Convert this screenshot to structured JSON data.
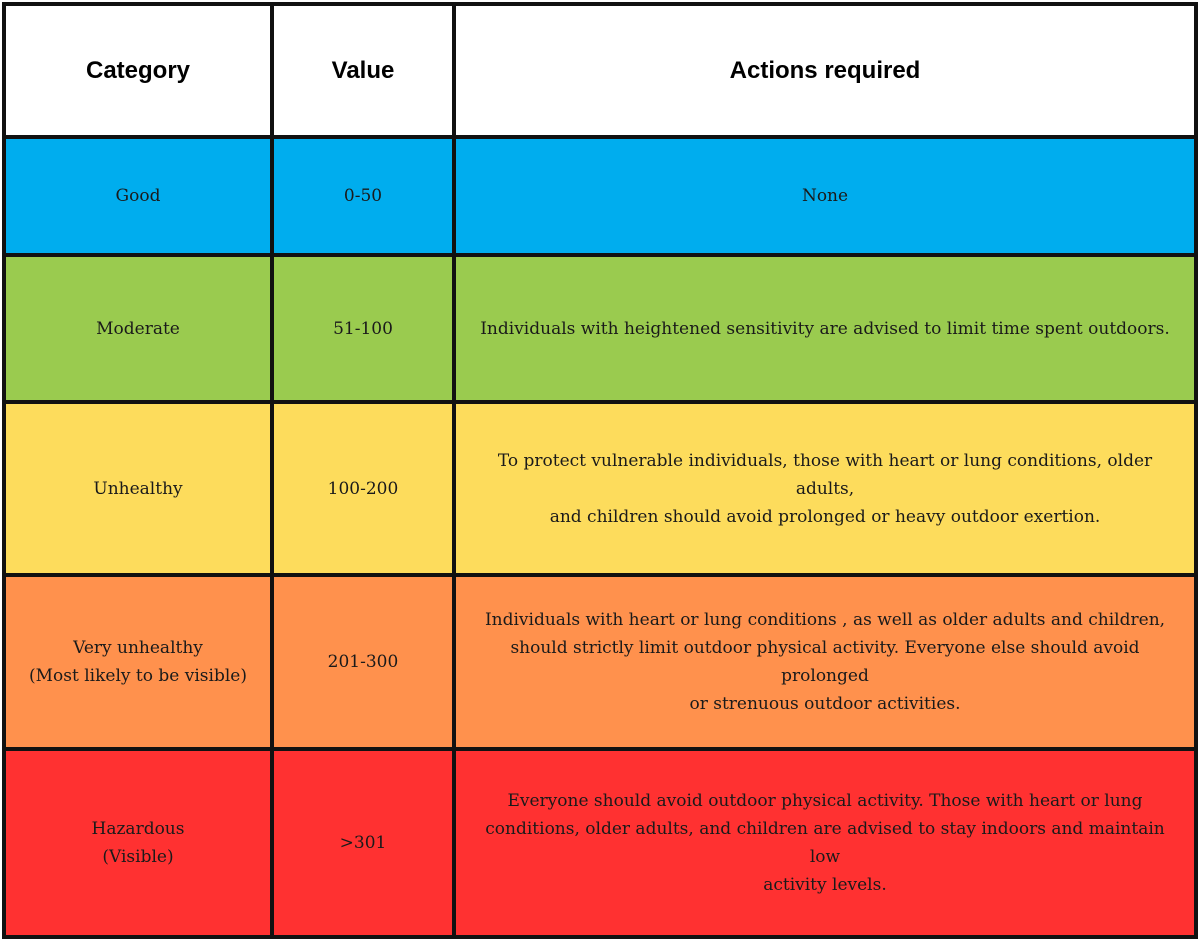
{
  "headers": {
    "category": "Category",
    "value": "Value",
    "actions": "Actions required"
  },
  "rows": [
    {
      "category": "Good",
      "value": "0-50",
      "actions": "None",
      "color": "#00ADEE"
    },
    {
      "category": "Moderate",
      "value": "51-100",
      "actions": "Individuals with heightened sensitivity are advised to limit time spent outdoors.",
      "color": "#9ACB4F"
    },
    {
      "category": "Unhealthy",
      "value": "100-200",
      "actions": "To protect vulnerable individuals, those with heart or lung conditions, older adults,\nand children should avoid prolonged or heavy outdoor exertion.",
      "color": "#FDDC5C"
    },
    {
      "category": "Very unhealthy\n(Most likely to be visible)",
      "value": "201-300",
      "actions": "Individuals with heart or lung conditions , as well as older adults and children,\nshould strictly limit outdoor physical activity. Everyone else should avoid prolonged\nor strenuous outdoor activities.",
      "color": "#FF914D"
    },
    {
      "category": "Hazardous\n(Visible)",
      "value": ">301",
      "actions": "Everyone should avoid outdoor physical activity. Those with heart or lung\nconditions, older adults, and children are advised to stay indoors and maintain low\nactivity levels.",
      "color": "#FF3131"
    }
  ]
}
